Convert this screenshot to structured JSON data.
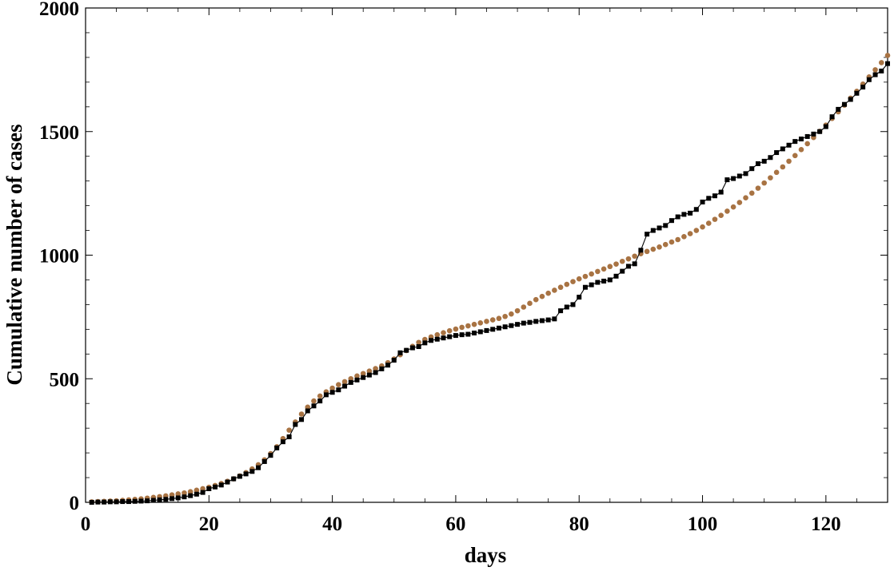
{
  "chart_data": {
    "type": "line",
    "title": "",
    "xlabel": "days",
    "ylabel": "Cumulative number of cases",
    "xlim": [
      0,
      130
    ],
    "ylim": [
      0,
      2000
    ],
    "x_ticks": [
      0,
      20,
      40,
      60,
      80,
      100,
      120
    ],
    "x_tick_labels": [
      "0",
      "20",
      "40",
      "60",
      "80",
      "100",
      "120"
    ],
    "y_ticks": [
      0,
      500,
      1000,
      1500,
      2000
    ],
    "y_tick_labels": [
      "0",
      "500",
      "1000",
      "1500",
      "2000"
    ],
    "grid": false,
    "legend": "none",
    "series": [
      {
        "marker": "square",
        "line": true,
        "color": "#000000",
        "x": [
          1,
          2,
          3,
          4,
          5,
          6,
          7,
          8,
          9,
          10,
          11,
          12,
          13,
          14,
          15,
          16,
          17,
          18,
          19,
          20,
          21,
          22,
          23,
          24,
          25,
          26,
          27,
          28,
          29,
          30,
          31,
          32,
          33,
          34,
          35,
          36,
          37,
          38,
          39,
          40,
          41,
          42,
          43,
          44,
          45,
          46,
          47,
          48,
          49,
          50,
          51,
          52,
          53,
          54,
          55,
          56,
          57,
          58,
          59,
          60,
          61,
          62,
          63,
          64,
          65,
          66,
          67,
          68,
          69,
          70,
          71,
          72,
          73,
          74,
          75,
          76,
          77,
          78,
          79,
          80,
          81,
          82,
          83,
          84,
          85,
          86,
          87,
          88,
          89,
          90,
          91,
          92,
          93,
          94,
          95,
          96,
          97,
          98,
          99,
          100,
          101,
          102,
          103,
          104,
          105,
          106,
          107,
          108,
          109,
          110,
          111,
          112,
          113,
          114,
          115,
          116,
          117,
          118,
          119,
          120,
          121,
          122,
          123,
          124,
          125,
          126,
          127,
          128,
          129,
          130
        ],
        "values": [
          0,
          1,
          1,
          2,
          2,
          3,
          3,
          4,
          5,
          6,
          8,
          10,
          12,
          15,
          18,
          22,
          27,
          33,
          40,
          55,
          62,
          70,
          82,
          95,
          105,
          115,
          125,
          140,
          165,
          190,
          220,
          245,
          265,
          315,
          335,
          370,
          390,
          410,
          435,
          445,
          455,
          470,
          485,
          495,
          505,
          515,
          525,
          540,
          555,
          575,
          605,
          615,
          625,
          630,
          645,
          655,
          660,
          665,
          670,
          675,
          678,
          680,
          685,
          690,
          695,
          700,
          705,
          710,
          715,
          720,
          725,
          728,
          732,
          735,
          738,
          742,
          775,
          790,
          800,
          830,
          870,
          880,
          890,
          895,
          900,
          915,
          935,
          955,
          965,
          1020,
          1085,
          1100,
          1110,
          1120,
          1140,
          1155,
          1165,
          1170,
          1185,
          1215,
          1230,
          1240,
          1255,
          1305,
          1310,
          1320,
          1330,
          1350,
          1370,
          1380,
          1395,
          1415,
          1430,
          1445,
          1460,
          1470,
          1480,
          1490,
          1500,
          1520,
          1560,
          1590,
          1610,
          1630,
          1655,
          1680,
          1710,
          1730,
          1745,
          1775
        ]
      },
      {
        "marker": "circle",
        "line": false,
        "color": "#a87343",
        "x": [
          1,
          2,
          3,
          4,
          5,
          6,
          7,
          8,
          9,
          10,
          11,
          12,
          13,
          14,
          15,
          16,
          17,
          18,
          19,
          20,
          21,
          22,
          23,
          24,
          25,
          26,
          27,
          28,
          29,
          30,
          31,
          32,
          33,
          34,
          35,
          36,
          37,
          38,
          39,
          40,
          41,
          42,
          43,
          44,
          45,
          46,
          47,
          48,
          49,
          50,
          51,
          52,
          53,
          54,
          55,
          56,
          57,
          58,
          59,
          60,
          61,
          62,
          63,
          64,
          65,
          66,
          67,
          68,
          69,
          70,
          71,
          72,
          73,
          74,
          75,
          76,
          77,
          78,
          79,
          80,
          81,
          82,
          83,
          84,
          85,
          86,
          87,
          88,
          89,
          90,
          91,
          92,
          93,
          94,
          95,
          96,
          97,
          98,
          99,
          100,
          101,
          102,
          103,
          104,
          105,
          106,
          107,
          108,
          109,
          110,
          111,
          112,
          113,
          114,
          115,
          116,
          117,
          118,
          119,
          120,
          121,
          122,
          123,
          124,
          125,
          126,
          127,
          128,
          129,
          130
        ],
        "values": [
          2,
          3,
          4,
          5,
          6,
          8,
          10,
          12,
          14,
          17,
          20,
          23,
          26,
          30,
          34,
          38,
          43,
          49,
          55,
          61,
          68,
          76,
          85,
          95,
          107,
          120,
          135,
          152,
          172,
          197,
          225,
          258,
          292,
          325,
          357,
          385,
          410,
          430,
          447,
          462,
          476,
          488,
          500,
          511,
          521,
          531,
          541,
          552,
          565,
          580,
          597,
          614,
          631,
          647,
          659,
          669,
          678,
          686,
          694,
          701,
          708,
          714,
          720,
          726,
          732,
          738,
          744,
          752,
          762,
          775,
          790,
          805,
          820,
          833,
          846,
          858,
          870,
          882,
          893,
          904,
          914,
          924,
          934,
          944,
          954,
          964,
          975,
          985,
          996,
          1006,
          1015,
          1024,
          1033,
          1043,
          1053,
          1063,
          1075,
          1087,
          1100,
          1114,
          1129,
          1145,
          1161,
          1178,
          1195,
          1213,
          1232,
          1251,
          1271,
          1292,
          1313,
          1335,
          1357,
          1380,
          1403,
          1427,
          1451,
          1476,
          1501,
          1526,
          1553,
          1580,
          1607,
          1635,
          1663,
          1692,
          1721,
          1750,
          1779,
          1808
        ]
      }
    ]
  }
}
